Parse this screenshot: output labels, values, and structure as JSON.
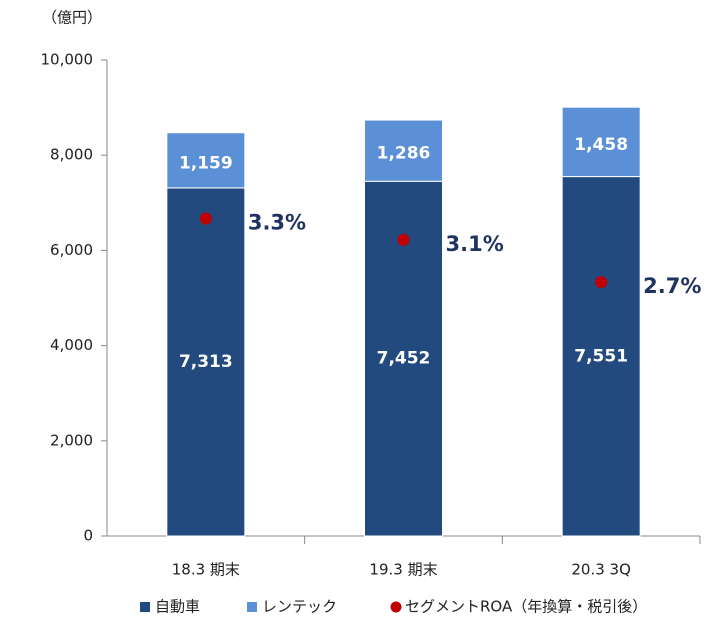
{
  "chart_data": {
    "type": "bar",
    "stacked": true,
    "unit_label": "（億円）",
    "categories": [
      "18.3 期末",
      "19.3 期末",
      "20.3 3Q"
    ],
    "series": [
      {
        "name": "自動車",
        "color": "#234a7e",
        "values": [
          7313,
          7452,
          7551
        ],
        "value_labels": [
          "7,313",
          "7,452",
          "7,551"
        ]
      },
      {
        "name": "レンテック",
        "color": "#5b8fd6",
        "values": [
          1159,
          1286,
          1458
        ],
        "value_labels": [
          "1,159",
          "1,286",
          "1,458"
        ]
      },
      {
        "name": "セグメントROA（年換算・税引後）",
        "type": "scatter",
        "axis": "y2",
        "color": "#c00000",
        "values": [
          3.3,
          3.1,
          2.7
        ],
        "value_labels": [
          "3.3%",
          "3.1%",
          "2.7%"
        ]
      }
    ],
    "ylim": [
      0,
      10000
    ],
    "yticks": [
      0,
      {
        "value": 2000,
        "label": "2,000"
      },
      {
        "value": 4000,
        "label": "4,000"
      },
      {
        "value": 6000,
        "label": "6,000"
      },
      {
        "value": 8000,
        "label": "8,000"
      },
      {
        "value": 10000,
        "label": "10,000"
      }
    ],
    "y2lim": [
      0.3,
      4.8
    ]
  }
}
